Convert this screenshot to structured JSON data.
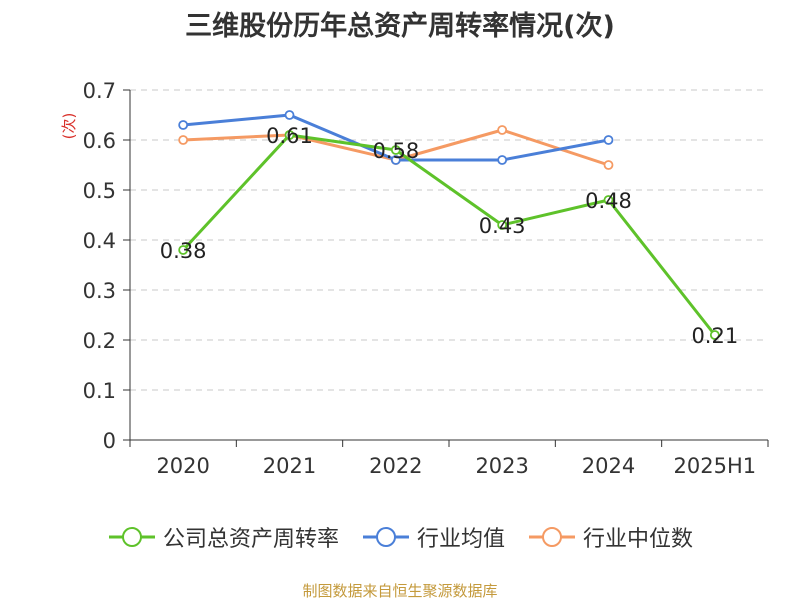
{
  "chart_data": {
    "type": "line",
    "title": "三维股份历年总资产周转率情况(次)",
    "ylabel": "(次)",
    "xlabel": "",
    "categories": [
      "2020",
      "2021",
      "2022",
      "2023",
      "2024",
      "2025H1"
    ],
    "ylim": [
      0,
      0.7
    ],
    "yticks": [
      "0",
      "0.1",
      "0.2",
      "0.3",
      "0.4",
      "0.5",
      "0.6",
      "0.7"
    ],
    "grid": true,
    "legend_position": "bottom",
    "series": [
      {
        "name": "公司总资产周转率",
        "color": "#5ec22a",
        "values": [
          0.38,
          0.61,
          0.58,
          0.43,
          0.48,
          0.21
        ],
        "labels": [
          "0.38",
          "0.61",
          "0.58",
          "0.43",
          "0.48",
          "0.21"
        ],
        "show_labels": true
      },
      {
        "name": "行业均值",
        "color": "#4a7fd8",
        "values": [
          0.63,
          0.65,
          0.56,
          0.56,
          0.6,
          null
        ]
      },
      {
        "name": "行业中位数",
        "color": "#f59a63",
        "values": [
          0.6,
          0.61,
          0.56,
          0.62,
          0.55,
          null
        ]
      }
    ]
  },
  "source": "制图数据来自恒生聚源数据库"
}
